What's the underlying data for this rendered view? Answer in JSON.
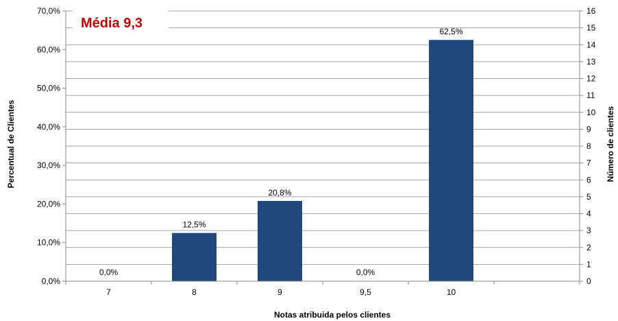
{
  "chart_data": {
    "type": "bar",
    "categories": [
      "7",
      "8",
      "9",
      "9,5",
      "10",
      ""
    ],
    "values": [
      0.0,
      12.5,
      20.8,
      0.0,
      62.5,
      null
    ],
    "data_labels": [
      "0,0%",
      "12,5%",
      "20,8%",
      "0,0%",
      "62,5%",
      ""
    ],
    "counts": [
      0,
      3,
      5,
      0,
      15,
      null
    ],
    "xlabel": "Notas atribuida pelos clientes",
    "ylabel": "Percentual de Clientes",
    "y2label": "Número de clientes",
    "ylim": [
      0,
      70
    ],
    "y2lim": [
      0,
      16
    ],
    "yticks": [
      "0,0%",
      "10,0%",
      "20,0%",
      "30,0%",
      "40,0%",
      "50,0%",
      "60,0%",
      "70,0%"
    ],
    "y2ticks": [
      "0",
      "1",
      "2",
      "3",
      "4",
      "5",
      "6",
      "7",
      "8",
      "9",
      "10",
      "11",
      "12",
      "13",
      "14",
      "15",
      "16"
    ],
    "grid": true,
    "annotation": "Média 9,3",
    "colors": {
      "bar": "#1f497d",
      "grid": "#888888",
      "axis": "#888888",
      "annotation": "#c00000"
    }
  }
}
